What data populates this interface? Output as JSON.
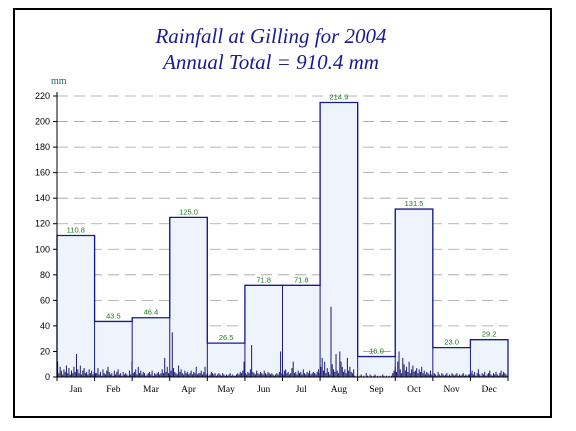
{
  "chart_data": {
    "type": "bar",
    "title": "Rainfall at Gilling for 2004",
    "subtitle": "Annual Total = 910.4 mm",
    "ylabel": "mm",
    "xlabel": "",
    "ylim": [
      0,
      220
    ],
    "yticks": [
      0,
      20,
      40,
      60,
      80,
      100,
      120,
      140,
      160,
      180,
      200,
      220
    ],
    "grid": true,
    "categories": [
      "Jan",
      "Feb",
      "Mar",
      "Apr",
      "May",
      "Jun",
      "Jul",
      "Aug",
      "Sep",
      "Oct",
      "Nov",
      "Dec"
    ],
    "values": [
      110.8,
      43.5,
      46.4,
      125.0,
      26.5,
      71.8,
      71.8,
      214.9,
      16.0,
      131.5,
      23.0,
      29.2
    ],
    "value_labels": [
      "110.8",
      "43.5",
      "46.4",
      "125.0",
      "26.5",
      "71.8",
      "71.8",
      "214.9",
      "16.0",
      "131.5",
      "23.0",
      "29.2"
    ],
    "daily_series": [
      {
        "values": [
          12,
          3,
          8,
          5,
          2,
          6,
          4,
          9,
          3,
          7,
          2,
          5,
          3,
          8,
          4,
          18,
          6,
          3,
          9,
          2,
          5,
          7,
          3,
          4,
          2,
          6,
          3,
          5,
          2,
          4,
          3,
          3,
          7,
          2,
          4,
          1,
          6,
          3,
          2,
          5,
          8,
          4,
          2,
          3,
          1,
          5,
          2,
          4,
          6,
          2,
          3,
          1,
          4,
          2,
          3,
          2,
          1,
          5,
          2,
          12,
          3,
          4,
          6,
          2,
          8,
          3,
          5,
          2,
          4,
          3,
          1,
          2,
          3,
          4,
          2,
          5,
          1,
          3,
          2,
          3,
          4,
          2,
          3,
          6,
          3,
          15,
          4,
          8,
          3,
          2,
          5,
          35,
          7,
          4,
          3,
          2,
          9,
          4,
          6,
          3,
          2,
          5,
          3,
          4,
          2,
          3,
          5,
          2,
          4,
          3,
          8,
          2,
          3,
          3,
          5,
          2,
          4,
          8,
          2,
          3,
          1,
          2,
          4,
          3,
          2,
          3,
          1,
          2,
          3,
          2,
          1,
          3,
          2,
          1,
          2,
          1,
          2,
          3,
          1,
          2,
          1,
          1,
          2,
          3,
          2,
          4,
          3,
          5,
          12,
          3,
          2,
          4,
          3,
          6,
          25,
          4,
          3,
          2,
          5,
          3,
          2,
          4,
          3,
          2,
          5,
          3,
          2,
          4,
          3,
          2,
          3,
          2,
          1,
          2,
          3,
          2,
          4,
          20,
          3,
          2,
          5,
          6,
          3,
          4,
          2,
          3,
          7,
          12,
          3,
          4,
          2,
          5,
          3,
          4,
          2,
          6,
          3,
          2,
          4,
          3,
          5,
          2,
          3,
          4,
          3,
          2,
          4,
          6,
          3,
          8,
          15,
          5,
          12,
          3,
          7,
          4,
          2,
          55,
          10,
          6,
          4,
          18,
          5,
          3,
          20,
          12,
          8,
          4,
          6,
          3,
          15,
          5,
          8,
          4,
          3,
          6,
          1,
          0,
          2,
          0,
          1,
          2,
          0,
          1,
          0,
          3,
          1,
          0,
          2,
          1,
          0,
          1,
          2,
          0,
          1,
          0,
          1,
          0,
          2,
          1,
          0,
          1,
          0,
          1,
          0,
          1,
          3,
          5,
          8,
          4,
          12,
          20,
          6,
          3,
          15,
          10,
          5,
          8,
          4,
          12,
          3,
          6,
          9,
          4,
          5,
          7,
          3,
          6,
          4,
          8,
          3,
          5,
          2,
          4,
          3,
          2,
          5,
          2,
          1,
          3,
          2,
          1,
          4,
          2,
          1,
          3,
          2,
          1,
          2,
          3,
          1,
          2,
          1,
          3,
          2,
          1,
          2,
          3,
          1,
          2,
          1,
          2,
          3,
          1,
          2,
          1,
          2,
          2,
          3,
          5,
          2,
          4,
          1,
          3,
          6,
          2,
          1,
          3,
          2,
          4,
          1,
          2,
          3,
          5,
          2,
          1,
          3,
          2,
          4,
          2,
          1,
          3,
          5,
          2,
          4,
          3,
          2,
          1
        ]
      }
    ]
  },
  "colors": {
    "title": "#1a1a8c",
    "axis_unit": "#1a6a6a",
    "step_line": "#1a1a8c",
    "fill": "#eef4fb",
    "grid": "#a0a0a0",
    "value_label": "#1a7a1a",
    "daily_bar": "#1a1a6c"
  }
}
